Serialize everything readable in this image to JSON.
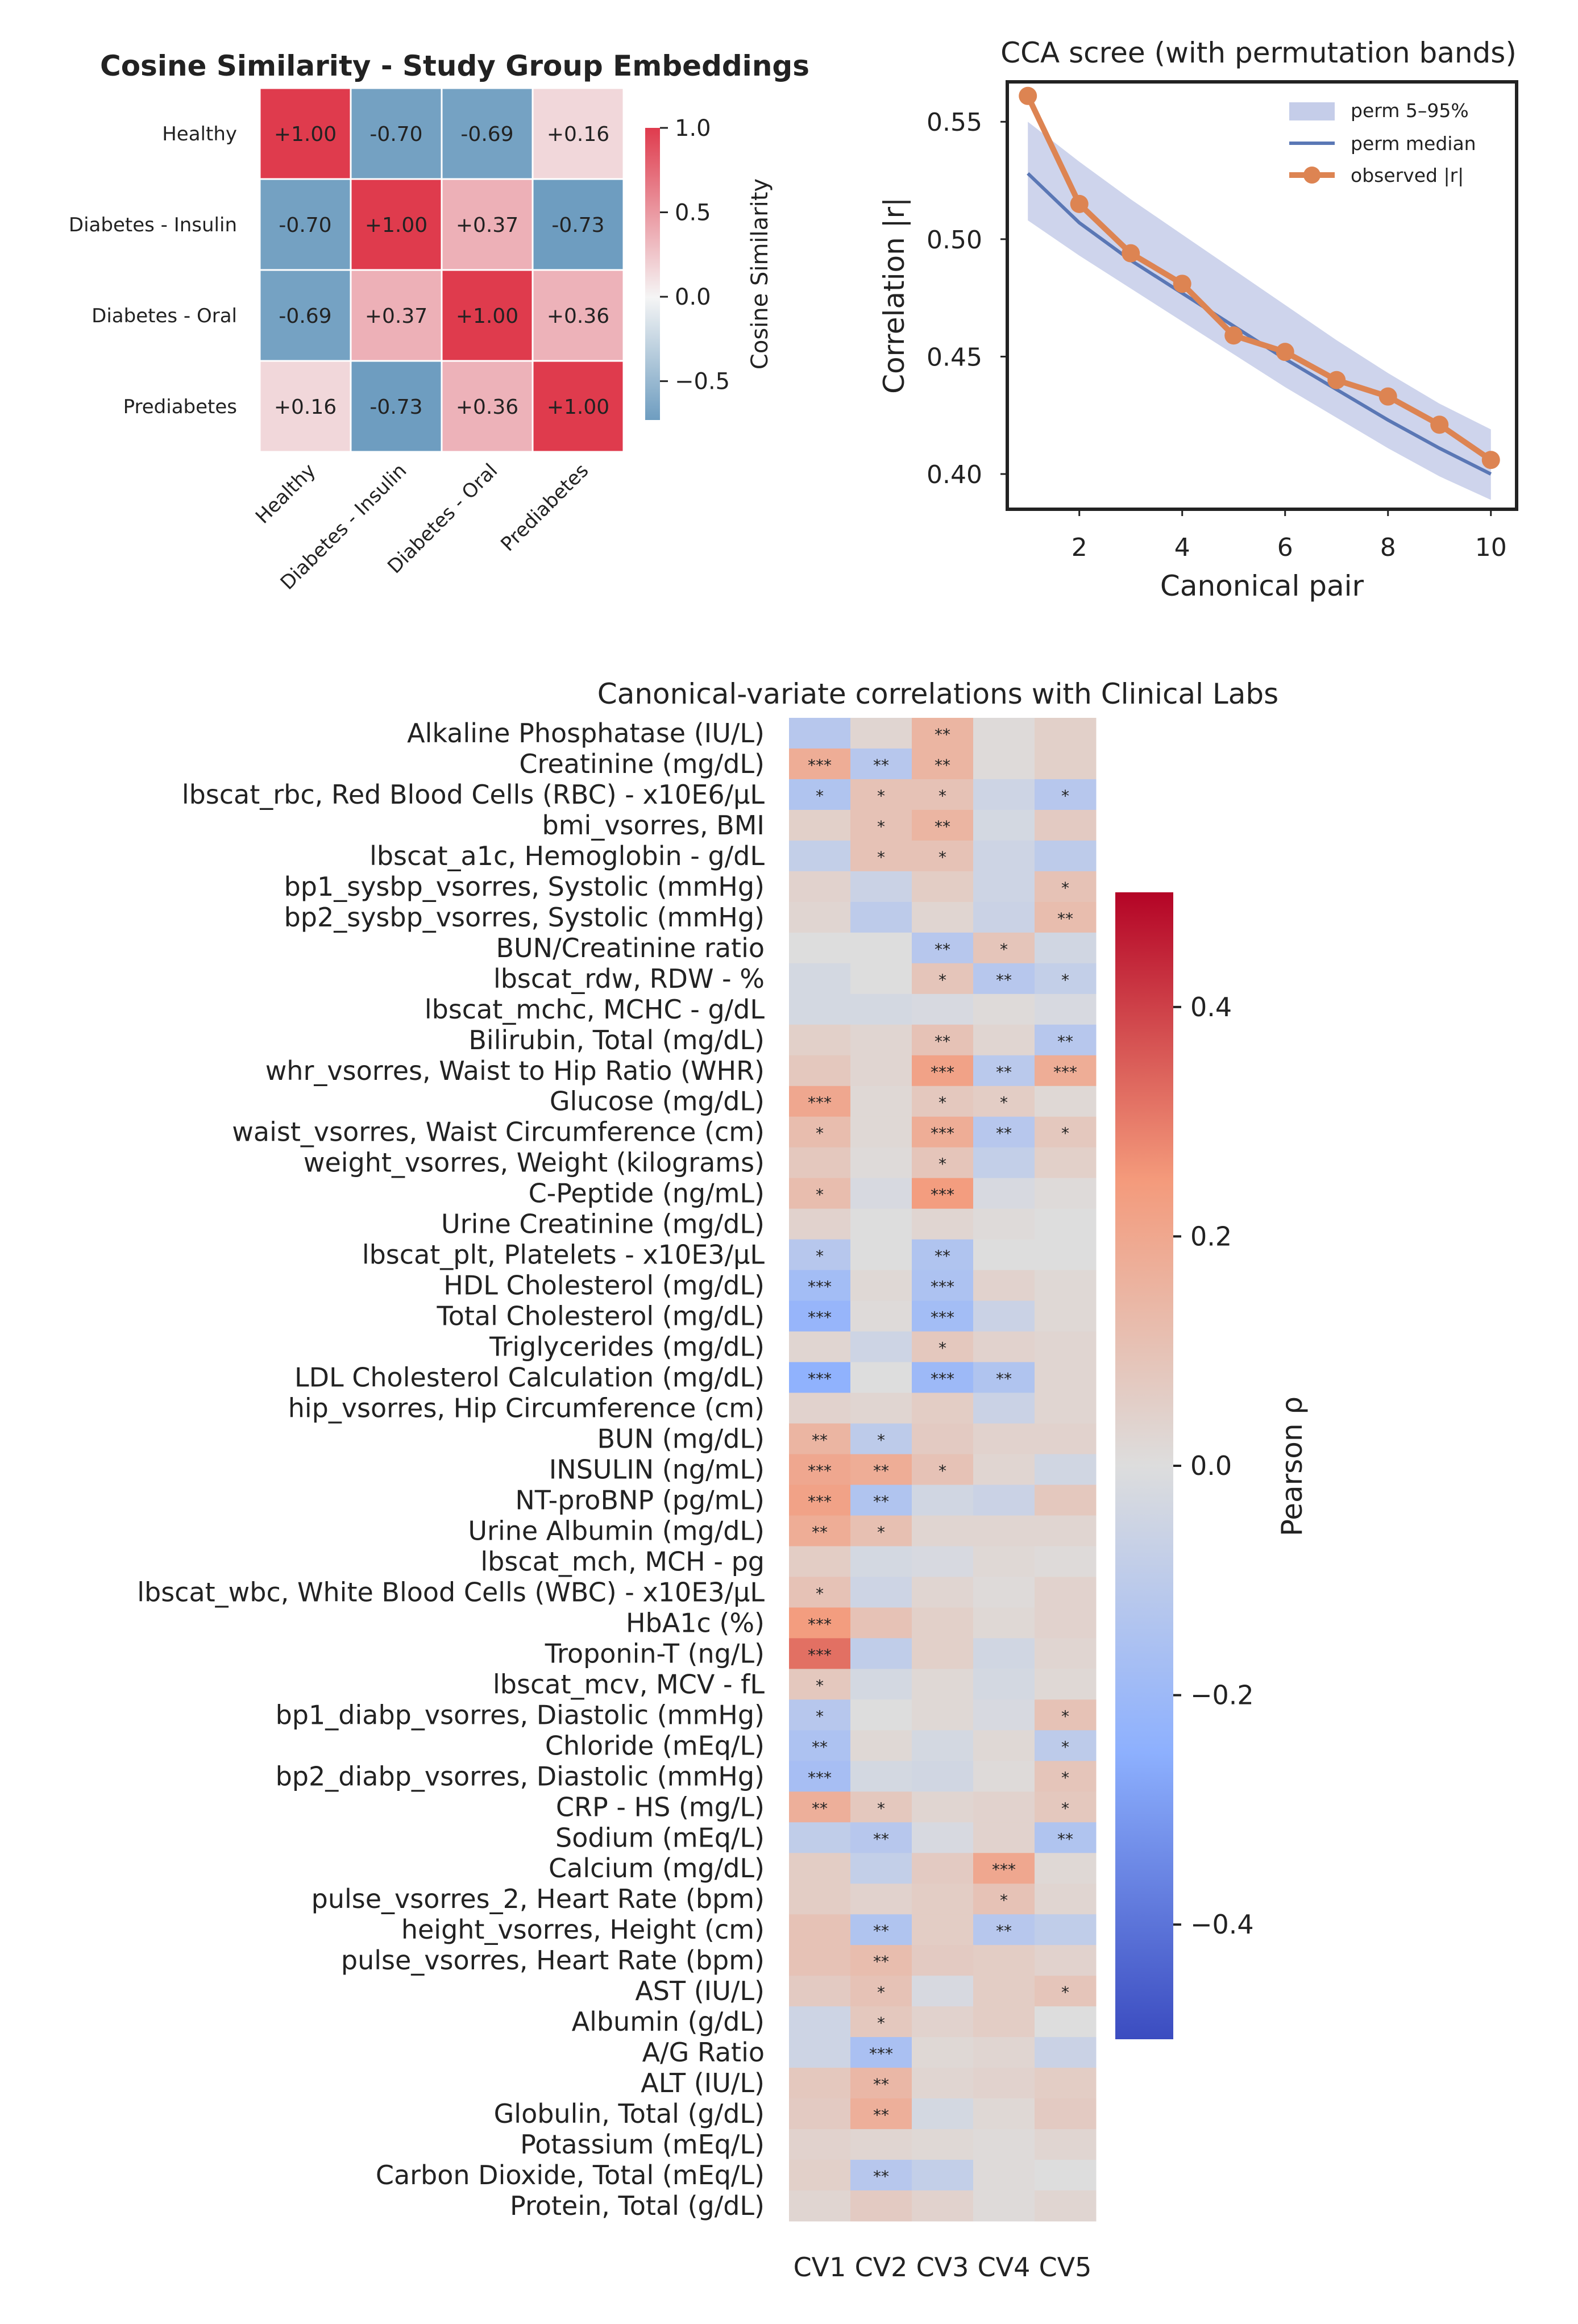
{
  "chart_data": [
    {
      "type": "heatmap",
      "title": "Cosine Similarity - Study Group Embeddings",
      "rows": [
        "Healthy",
        "Diabetes - Insulin",
        "Diabetes - Oral",
        "Prediabetes"
      ],
      "cols": [
        "Healthy",
        "Diabetes - Insulin",
        "Diabetes - Oral",
        "Prediabetes"
      ],
      "values": [
        [
          1.0,
          -0.7,
          -0.69,
          0.16
        ],
        [
          -0.7,
          1.0,
          0.37,
          -0.73
        ],
        [
          -0.69,
          0.37,
          1.0,
          0.36
        ],
        [
          0.16,
          -0.73,
          0.36,
          1.0
        ]
      ],
      "cell_labels": [
        [
          "+1.00",
          "-0.70",
          "-0.69",
          "+0.16"
        ],
        [
          "-0.70",
          "+1.00",
          "+0.37",
          "-0.73"
        ],
        [
          "-0.69",
          "+0.37",
          "+1.00",
          "+0.36"
        ],
        [
          "+0.16",
          "-0.73",
          "+0.36",
          "+1.00"
        ]
      ],
      "colorbar": {
        "label": "Cosine Similarity",
        "range": [
          -0.73,
          1.0
        ],
        "ticks": [
          1.0,
          0.5,
          0.0,
          -0.5
        ],
        "tick_labels": [
          "1.0",
          "0.5",
          "0.0",
          "−0.5"
        ],
        "colors": [
          "#6e9dc0",
          "#f5f5f5",
          "#df3b4d"
        ]
      }
    },
    {
      "type": "line",
      "title": "CCA scree (with permutation bands)",
      "xlabel": "Canonical pair",
      "ylabel": "Correlation |r|",
      "x": [
        1,
        2,
        3,
        4,
        5,
        6,
        7,
        8,
        9,
        10
      ],
      "xlim": [
        0.6,
        10.5
      ],
      "ylim": [
        0.385,
        0.567
      ],
      "xticks": [
        2,
        4,
        6,
        8,
        10
      ],
      "yticks": [
        0.4,
        0.45,
        0.5,
        0.55
      ],
      "ytick_labels": [
        "0.40",
        "0.45",
        "0.50",
        "0.55"
      ],
      "band_low": [
        0.508,
        0.493,
        0.479,
        0.465,
        0.451,
        0.437,
        0.424,
        0.411,
        0.399,
        0.389
      ],
      "band_high": [
        0.55,
        0.533,
        0.517,
        0.502,
        0.487,
        0.472,
        0.457,
        0.443,
        0.43,
        0.419
      ],
      "series": [
        {
          "name": "perm 5–95%",
          "color": "#c5cde9"
        },
        {
          "name": "perm median",
          "color": "#5a77b5",
          "values": [
            0.528,
            0.507,
            0.491,
            0.477,
            0.463,
            0.449,
            0.436,
            0.423,
            0.411,
            0.4
          ]
        },
        {
          "name": "observed |r|",
          "color": "#dd8452",
          "values": [
            0.561,
            0.515,
            0.494,
            0.481,
            0.459,
            0.452,
            0.44,
            0.433,
            0.421,
            0.406
          ]
        }
      ]
    },
    {
      "type": "heatmap",
      "title": "Canonical-variate correlations with Clinical Labs",
      "cols": [
        "CV1",
        "CV2",
        "CV3",
        "CV4",
        "CV5"
      ],
      "rows": [
        "Alkaline Phosphatase (IU/L)",
        "Creatinine (mg/dL)",
        "lbscat_rbc, Red Blood Cells (RBC) - x10E6/µL",
        "bmi_vsorres, BMI",
        "lbscat_a1c, Hemoglobin - g/dL",
        "bp1_sysbp_vsorres, Systolic (mmHg)",
        "bp2_sysbp_vsorres, Systolic (mmHg)",
        "BUN/Creatinine ratio",
        "lbscat_rdw, RDW - %",
        "lbscat_mchc, MCHC - g/dL",
        "Bilirubin, Total (mg/dL)",
        "whr_vsorres, Waist to Hip Ratio (WHR)",
        "Glucose (mg/dL)",
        "waist_vsorres, Waist Circumference (cm)",
        "weight_vsorres, Weight (kilograms)",
        "C-Peptide (ng/mL)",
        "Urine Creatinine (mg/dL)",
        "lbscat_plt, Platelets - x10E3/µL",
        "HDL Cholesterol (mg/dL)",
        "Total Cholesterol (mg/dL)",
        "Triglycerides (mg/dL)",
        "LDL Cholesterol Calculation (mg/dL)",
        "hip_vsorres, Hip Circumference (cm)",
        "BUN (mg/dL)",
        "INSULIN (ng/mL)",
        "NT-proBNP (pg/mL)",
        "Urine Albumin (mg/dL)",
        "lbscat_mch, MCH - pg",
        "lbscat_wbc, White Blood Cells (WBC) - x10E3/µL",
        "HbA1c (%)",
        "Troponin-T (ng/L)",
        "lbscat_mcv, MCV - fL",
        "bp1_diabp_vsorres, Diastolic (mmHg)",
        "Chloride (mEq/L)",
        "bp2_diabp_vsorres, Diastolic (mmHg)",
        "CRP - HS (mg/L)",
        "Sodium (mEq/L)",
        "Calcium (mg/dL)",
        "pulse_vsorres_2, Heart Rate (bpm)",
        "height_vsorres, Height (cm)",
        "pulse_vsorres, Heart Rate (bpm)",
        "AST (IU/L)",
        "Albumin (g/dL)",
        "A/G Ratio",
        "ALT (IU/L)",
        "Globulin, Total (g/dL)",
        "Potassium (mEq/L)",
        "Carbon Dioxide, Total (mEq/L)",
        "Protein, Total (g/dL)"
      ],
      "values": [
        [
          -0.12,
          0.03,
          0.15,
          0.01,
          0.05
        ],
        [
          0.18,
          -0.12,
          0.15,
          0.01,
          0.05
        ],
        [
          -0.14,
          0.1,
          0.1,
          -0.05,
          -0.12
        ],
        [
          0.05,
          0.1,
          0.15,
          -0.03,
          0.07
        ],
        [
          -0.08,
          0.1,
          0.1,
          -0.05,
          -0.1
        ],
        [
          0.04,
          -0.06,
          0.06,
          -0.05,
          0.1
        ],
        [
          0.03,
          -0.1,
          0.03,
          -0.06,
          0.12
        ],
        [
          0.0,
          0.0,
          -0.12,
          0.09,
          -0.04
        ],
        [
          -0.03,
          0.0,
          0.09,
          -0.12,
          -0.08
        ],
        [
          -0.03,
          -0.03,
          -0.02,
          0.01,
          -0.02
        ],
        [
          0.05,
          0.03,
          0.1,
          0.03,
          -0.12
        ],
        [
          0.08,
          0.03,
          0.22,
          -0.11,
          0.18
        ],
        [
          0.2,
          0.02,
          0.08,
          0.06,
          0.02
        ],
        [
          0.12,
          0.02,
          0.18,
          -0.12,
          0.08
        ],
        [
          0.08,
          0.01,
          0.09,
          -0.08,
          0.05
        ],
        [
          0.12,
          -0.02,
          0.24,
          -0.02,
          0.01
        ],
        [
          0.04,
          0.0,
          0.03,
          0.01,
          0.0
        ],
        [
          -0.12,
          0.0,
          -0.14,
          0.0,
          0.0
        ],
        [
          -0.18,
          0.02,
          -0.15,
          0.04,
          0.02
        ],
        [
          -0.22,
          0.01,
          -0.18,
          -0.06,
          0.02
        ],
        [
          0.03,
          -0.05,
          0.08,
          0.04,
          0.03
        ],
        [
          -0.24,
          0.0,
          -0.2,
          -0.14,
          0.03
        ],
        [
          0.04,
          0.03,
          0.06,
          -0.06,
          0.03
        ],
        [
          0.15,
          -0.1,
          0.07,
          0.04,
          0.04
        ],
        [
          0.2,
          0.18,
          0.1,
          0.03,
          -0.04
        ],
        [
          0.22,
          -0.14,
          -0.04,
          -0.06,
          0.08
        ],
        [
          0.18,
          0.11,
          0.03,
          0.03,
          0.03
        ],
        [
          0.06,
          -0.03,
          -0.02,
          0.02,
          0.01
        ],
        [
          0.1,
          -0.05,
          0.03,
          0.01,
          0.04
        ],
        [
          0.24,
          0.1,
          0.05,
          0.02,
          0.04
        ],
        [
          0.32,
          -0.09,
          0.05,
          -0.04,
          0.03
        ],
        [
          0.08,
          -0.03,
          0.02,
          -0.03,
          0.02
        ],
        [
          -0.12,
          0.0,
          0.02,
          -0.02,
          0.1
        ],
        [
          -0.15,
          0.02,
          -0.03,
          0.02,
          -0.1
        ],
        [
          -0.17,
          -0.03,
          -0.04,
          0.01,
          0.09
        ],
        [
          0.17,
          0.08,
          0.03,
          0.04,
          0.08
        ],
        [
          -0.09,
          -0.12,
          -0.02,
          0.04,
          -0.14
        ],
        [
          0.06,
          -0.08,
          0.07,
          0.2,
          0.02
        ],
        [
          0.06,
          0.04,
          0.06,
          0.1,
          0.03
        ],
        [
          0.1,
          -0.14,
          0.06,
          -0.12,
          -0.09
        ],
        [
          0.1,
          0.12,
          0.07,
          0.06,
          0.04
        ],
        [
          0.07,
          0.1,
          -0.02,
          0.06,
          0.09
        ],
        [
          -0.05,
          0.08,
          0.04,
          0.06,
          0.0
        ],
        [
          -0.05,
          -0.16,
          0.02,
          0.03,
          -0.06
        ],
        [
          0.08,
          0.14,
          0.03,
          0.04,
          0.06
        ],
        [
          0.07,
          0.17,
          -0.03,
          0.02,
          0.07
        ],
        [
          0.04,
          0.03,
          0.02,
          0.01,
          0.03
        ],
        [
          0.05,
          -0.12,
          -0.08,
          0.01,
          0.0
        ],
        [
          0.03,
          0.07,
          0.04,
          0.01,
          0.03
        ]
      ],
      "stars": [
        [
          "",
          "",
          "**",
          "",
          ""
        ],
        [
          "***",
          "**",
          "**",
          "",
          ""
        ],
        [
          "*",
          "*",
          "*",
          "",
          "*"
        ],
        [
          "",
          "*",
          "**",
          "",
          ""
        ],
        [
          "",
          "*",
          "*",
          "",
          ""
        ],
        [
          "",
          "",
          "",
          "",
          "*"
        ],
        [
          "",
          "",
          "",
          "",
          "**"
        ],
        [
          "",
          "",
          "**",
          "*",
          ""
        ],
        [
          "",
          "",
          "*",
          "**",
          "*"
        ],
        [
          "",
          "",
          "",
          "",
          ""
        ],
        [
          "",
          "",
          "**",
          "",
          "**"
        ],
        [
          "",
          "",
          "***",
          "**",
          "***"
        ],
        [
          "***",
          "",
          "*",
          "*",
          ""
        ],
        [
          "*",
          "",
          "***",
          "**",
          "*"
        ],
        [
          "",
          "",
          "*",
          "",
          ""
        ],
        [
          "*",
          "",
          "***",
          "",
          ""
        ],
        [
          "",
          "",
          "",
          "",
          ""
        ],
        [
          "*",
          "",
          "**",
          "",
          ""
        ],
        [
          "***",
          "",
          "***",
          "",
          ""
        ],
        [
          "***",
          "",
          "***",
          "",
          ""
        ],
        [
          "",
          "",
          "*",
          "",
          ""
        ],
        [
          "***",
          "",
          "***",
          "**",
          ""
        ],
        [
          "",
          "",
          "",
          "",
          ""
        ],
        [
          "**",
          "*",
          "",
          "",
          ""
        ],
        [
          "***",
          "**",
          "*",
          "",
          ""
        ],
        [
          "***",
          "**",
          "",
          "",
          ""
        ],
        [
          "**",
          "*",
          "",
          "",
          ""
        ],
        [
          "",
          "",
          "",
          "",
          ""
        ],
        [
          "*",
          "",
          "",
          "",
          ""
        ],
        [
          "***",
          "",
          "",
          "",
          ""
        ],
        [
          "***",
          "",
          "",
          "",
          ""
        ],
        [
          "*",
          "",
          "",
          "",
          ""
        ],
        [
          "*",
          "",
          "",
          "",
          "*"
        ],
        [
          "**",
          "",
          "",
          "",
          "*"
        ],
        [
          "***",
          "",
          "",
          "",
          "*"
        ],
        [
          "**",
          "*",
          "",
          "",
          "*"
        ],
        [
          "",
          "**",
          "",
          "",
          "**"
        ],
        [
          "",
          "",
          "",
          "***",
          ""
        ],
        [
          "",
          "",
          "",
          "*",
          ""
        ],
        [
          "",
          "**",
          "",
          "**",
          ""
        ],
        [
          "",
          "**",
          "",
          "",
          ""
        ],
        [
          "",
          "*",
          "",
          "",
          "*"
        ],
        [
          "",
          "*",
          "",
          "",
          ""
        ],
        [
          "",
          "***",
          "",
          "",
          ""
        ],
        [
          "",
          "**",
          "",
          "",
          ""
        ],
        [
          "",
          "**",
          "",
          "",
          ""
        ],
        [
          "",
          "",
          "",
          "",
          ""
        ],
        [
          "",
          "**",
          "",
          "",
          ""
        ],
        [
          "",
          "",
          "",
          "",
          ""
        ]
      ],
      "colorbar": {
        "label": "Pearson ρ",
        "range": [
          -0.5,
          0.5
        ],
        "ticks": [
          0.4,
          0.2,
          0.0,
          -0.2,
          -0.4
        ],
        "tick_labels": [
          "0.4",
          "0.2",
          "0.0",
          "−0.2",
          "−0.4"
        ],
        "colors": [
          "#3b4cc0",
          "#dddddd",
          "#b40426"
        ]
      }
    }
  ]
}
